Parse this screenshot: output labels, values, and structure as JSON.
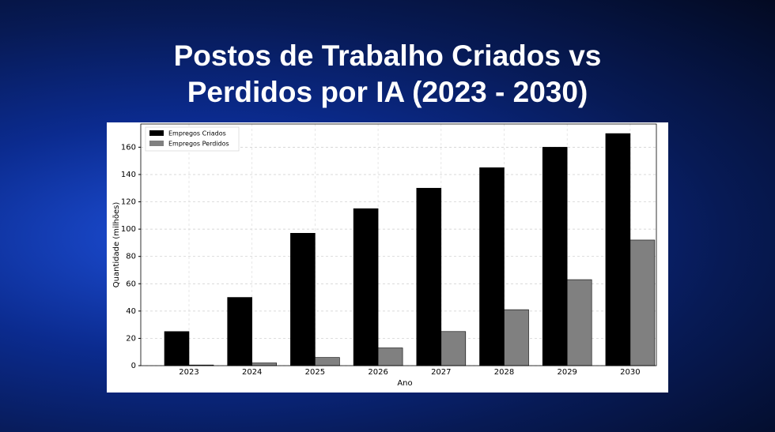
{
  "chart_data": {
    "type": "bar",
    "title": "Postos de Trabalho Criados vs Perdidos por IA (2023 - 2030)",
    "x_label": "Ano",
    "y_label": "Quantidade (milhões)",
    "categories": [
      "2023",
      "2024",
      "2025",
      "2026",
      "2027",
      "2028",
      "2029",
      "2030"
    ],
    "series": [
      {
        "name": "Empregos Criados",
        "color": "#000000",
        "values": [
          25,
          50,
          97,
          115,
          130,
          145,
          160,
          170
        ]
      },
      {
        "name": "Empregos Perdidos",
        "color": "#808080",
        "values": [
          0.5,
          2,
          6,
          13,
          25,
          41,
          63,
          92
        ]
      }
    ],
    "ylim": [
      0,
      177
    ],
    "yticks": [
      0,
      20,
      40,
      60,
      80,
      100,
      120,
      140,
      160
    ],
    "grid": true,
    "legend": "upper-left"
  }
}
